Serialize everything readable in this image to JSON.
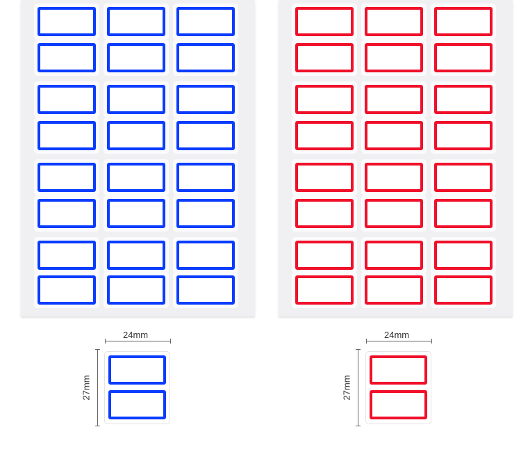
{
  "sheets": [
    {
      "color_name": "blue",
      "color": "#0a3cff"
    },
    {
      "color_name": "red",
      "color": "#f0102a"
    }
  ],
  "layout_info": {
    "columns": 3,
    "rows": 8
  },
  "dimensions": {
    "width_label": "24mm",
    "height_label": "27mm"
  }
}
